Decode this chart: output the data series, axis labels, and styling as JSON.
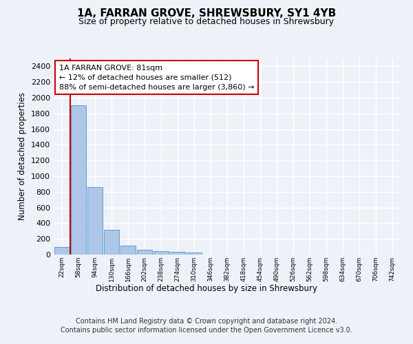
{
  "title_line1": "1A, FARRAN GROVE, SHREWSBURY, SY1 4YB",
  "title_line2": "Size of property relative to detached houses in Shrewsbury",
  "xlabel": "Distribution of detached houses by size in Shrewsbury",
  "ylabel": "Number of detached properties",
  "bin_labels": [
    "22sqm",
    "58sqm",
    "94sqm",
    "130sqm",
    "166sqm",
    "202sqm",
    "238sqm",
    "274sqm",
    "310sqm",
    "346sqm",
    "382sqm",
    "418sqm",
    "454sqm",
    "490sqm",
    "526sqm",
    "562sqm",
    "598sqm",
    "634sqm",
    "670sqm",
    "706sqm",
    "742sqm"
  ],
  "bar_values": [
    100,
    1900,
    860,
    315,
    115,
    58,
    48,
    35,
    25,
    0,
    0,
    0,
    0,
    0,
    0,
    0,
    0,
    0,
    0,
    0,
    0
  ],
  "bar_color": "#aec6e8",
  "bar_edge_color": "#5a9fd4",
  "vline_color": "#cc0000",
  "annotation_box_text": "1A FARRAN GROVE: 81sqm\n← 12% of detached houses are smaller (512)\n88% of semi-detached houses are larger (3,860) →",
  "ylim": [
    0,
    2500
  ],
  "yticks": [
    0,
    200,
    400,
    600,
    800,
    1000,
    1200,
    1400,
    1600,
    1800,
    2000,
    2200,
    2400
  ],
  "footer_line1": "Contains HM Land Registry data © Crown copyright and database right 2024.",
  "footer_line2": "Contains public sector information licensed under the Open Government Licence v3.0.",
  "bg_color": "#eef2f8",
  "plot_bg_color": "#eef2f8",
  "grid_color": "#ffffff",
  "title_fontsize": 11,
  "subtitle_fontsize": 9,
  "annotation_fontsize": 8,
  "footer_fontsize": 7
}
